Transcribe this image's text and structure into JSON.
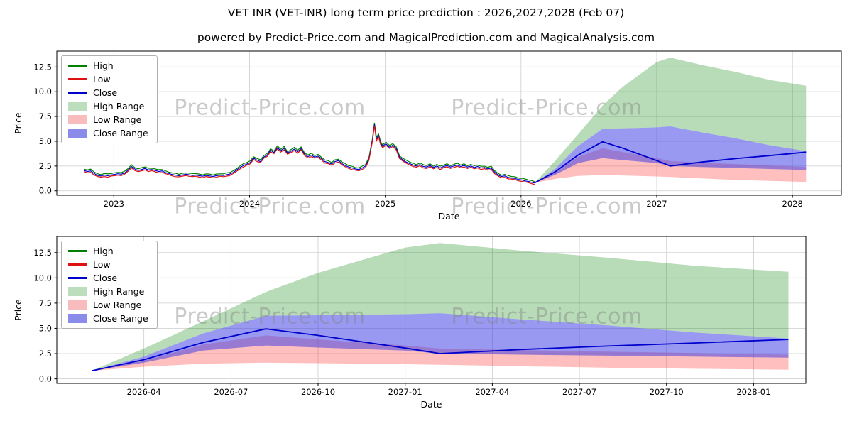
{
  "page": {
    "title": "VET INR (VET-INR) long term price prediction : 2026,2027,2028 (Feb 07)",
    "subtitle": "powered by Predict-Price.com and MagicalPrediction.com and MagicalAnalysis.com"
  },
  "watermark": {
    "text": "Predict-Price.com"
  },
  "legend": {
    "items": [
      {
        "label": "High",
        "type": "line",
        "color": "#008000"
      },
      {
        "label": "Low",
        "type": "line",
        "color": "#dd1111"
      },
      {
        "label": "Close",
        "type": "line",
        "color": "#0000cc"
      },
      {
        "label": "High Range",
        "type": "patch",
        "color": "#bcdebc"
      },
      {
        "label": "Low Range",
        "type": "patch",
        "color": "#f9bcbc"
      },
      {
        "label": "Close Range",
        "type": "patch",
        "color": "#8b8bea"
      }
    ]
  },
  "chart_data": {
    "type": "line",
    "title": "VET INR (VET-INR) long term price prediction : 2026,2027,2028 (Feb 07)",
    "subtitle": "powered by Predict-Price.com and MagicalPrediction.com and MagicalAnalysis.com",
    "colors": {
      "high": "#008000",
      "low": "#dd1111",
      "close": "#0000cc",
      "high_band": "rgba(0,128,0,0.28)",
      "low_band": "rgba(255,60,60,0.33)",
      "close_band": "rgba(60,60,230,0.52)",
      "grid": "#cccccc"
    },
    "charts": [
      {
        "name": "overview",
        "xlabel": "Date",
        "ylabel": "Price",
        "xlim": [
          2022.58,
          2028.36
        ],
        "ylim": [
          -0.45,
          14.1
        ],
        "xticks": [
          {
            "v": 2023,
            "label": "2023"
          },
          {
            "v": 2024,
            "label": "2024"
          },
          {
            "v": 2025,
            "label": "2025"
          },
          {
            "v": 2026,
            "label": "2026"
          },
          {
            "v": 2027,
            "label": "2027"
          },
          {
            "v": 2028,
            "label": "2028"
          }
        ],
        "yticks": [
          {
            "v": 0,
            "label": "0.0"
          },
          {
            "v": 2.5,
            "label": "2.5"
          },
          {
            "v": 5,
            "label": "5.0"
          },
          {
            "v": 7.5,
            "label": "7.5"
          },
          {
            "v": 10,
            "label": "10.0"
          },
          {
            "v": 12.5,
            "label": "12.5"
          }
        ]
      },
      {
        "name": "forecast",
        "xlabel": "Date",
        "ylabel": "Price",
        "xlim": [
          2026.0,
          2028.15
        ],
        "ylim": [
          -0.45,
          14.1
        ],
        "xticks": [
          {
            "v": 2026.25,
            "label": "2026-04"
          },
          {
            "v": 2026.5,
            "label": "2026-07"
          },
          {
            "v": 2026.75,
            "label": "2026-10"
          },
          {
            "v": 2027.0,
            "label": "2027-01"
          },
          {
            "v": 2027.25,
            "label": "2027-04"
          },
          {
            "v": 2027.5,
            "label": "2027-07"
          },
          {
            "v": 2027.75,
            "label": "2027-10"
          },
          {
            "v": 2028.0,
            "label": "2028-01"
          }
        ],
        "yticks": [
          {
            "v": 0,
            "label": "0.0"
          },
          {
            "v": 2.5,
            "label": "2.5"
          },
          {
            "v": 5,
            "label": "5.0"
          },
          {
            "v": 7.5,
            "label": "7.5"
          },
          {
            "v": 10,
            "label": "10.0"
          },
          {
            "v": 12.5,
            "label": "12.5"
          }
        ]
      }
    ],
    "historical": {
      "high_offset": 0.13,
      "low_offset": -0.11,
      "points": [
        [
          2022.78,
          2.05
        ],
        [
          2022.805,
          1.95
        ],
        [
          2022.83,
          2.0
        ],
        [
          2022.855,
          1.75
        ],
        [
          2022.88,
          1.55
        ],
        [
          2022.905,
          1.5
        ],
        [
          2022.93,
          1.58
        ],
        [
          2022.955,
          1.52
        ],
        [
          2022.98,
          1.6
        ],
        [
          2023.005,
          1.65
        ],
        [
          2023.03,
          1.72
        ],
        [
          2023.055,
          1.68
        ],
        [
          2023.08,
          1.8
        ],
        [
          2023.105,
          2.1
        ],
        [
          2023.13,
          2.45
        ],
        [
          2023.155,
          2.2
        ],
        [
          2023.18,
          2.05
        ],
        [
          2023.205,
          2.15
        ],
        [
          2023.23,
          2.25
        ],
        [
          2023.255,
          2.1
        ],
        [
          2023.28,
          2.15
        ],
        [
          2023.305,
          2.05
        ],
        [
          2023.33,
          1.95
        ],
        [
          2023.355,
          2.0
        ],
        [
          2023.38,
          1.85
        ],
        [
          2023.405,
          1.75
        ],
        [
          2023.43,
          1.65
        ],
        [
          2023.455,
          1.58
        ],
        [
          2023.48,
          1.52
        ],
        [
          2023.505,
          1.6
        ],
        [
          2023.53,
          1.68
        ],
        [
          2023.555,
          1.62
        ],
        [
          2023.58,
          1.55
        ],
        [
          2023.605,
          1.6
        ],
        [
          2023.63,
          1.52
        ],
        [
          2023.655,
          1.48
        ],
        [
          2023.68,
          1.55
        ],
        [
          2023.705,
          1.5
        ],
        [
          2023.73,
          1.45
        ],
        [
          2023.755,
          1.52
        ],
        [
          2023.78,
          1.58
        ],
        [
          2023.805,
          1.55
        ],
        [
          2023.83,
          1.62
        ],
        [
          2023.855,
          1.7
        ],
        [
          2023.88,
          1.85
        ],
        [
          2023.905,
          2.1
        ],
        [
          2023.93,
          2.35
        ],
        [
          2023.955,
          2.55
        ],
        [
          2023.98,
          2.7
        ],
        [
          2024.005,
          2.85
        ],
        [
          2024.03,
          3.3
        ],
        [
          2024.055,
          3.1
        ],
        [
          2024.08,
          2.95
        ],
        [
          2024.105,
          3.4
        ],
        [
          2024.13,
          3.6
        ],
        [
          2024.155,
          4.1
        ],
        [
          2024.18,
          3.85
        ],
        [
          2024.205,
          4.35
        ],
        [
          2024.23,
          4.05
        ],
        [
          2024.255,
          4.3
        ],
        [
          2024.28,
          3.8
        ],
        [
          2024.305,
          4.0
        ],
        [
          2024.33,
          4.2
        ],
        [
          2024.355,
          3.95
        ],
        [
          2024.38,
          4.25
        ],
        [
          2024.405,
          3.7
        ],
        [
          2024.43,
          3.45
        ],
        [
          2024.455,
          3.6
        ],
        [
          2024.48,
          3.4
        ],
        [
          2024.505,
          3.5
        ],
        [
          2024.53,
          3.25
        ],
        [
          2024.555,
          2.95
        ],
        [
          2024.58,
          2.85
        ],
        [
          2024.605,
          2.7
        ],
        [
          2024.63,
          2.95
        ],
        [
          2024.655,
          3.05
        ],
        [
          2024.68,
          2.75
        ],
        [
          2024.705,
          2.55
        ],
        [
          2024.73,
          2.4
        ],
        [
          2024.755,
          2.3
        ],
        [
          2024.78,
          2.2
        ],
        [
          2024.805,
          2.15
        ],
        [
          2024.83,
          2.3
        ],
        [
          2024.855,
          2.5
        ],
        [
          2024.88,
          3.2
        ],
        [
          2024.905,
          5.1
        ],
        [
          2024.92,
          6.7
        ],
        [
          2024.935,
          5.2
        ],
        [
          2024.95,
          5.6
        ],
        [
          2024.965,
          4.8
        ],
        [
          2024.98,
          4.5
        ],
        [
          2025.005,
          4.75
        ],
        [
          2025.03,
          4.4
        ],
        [
          2025.055,
          4.6
        ],
        [
          2025.08,
          4.3
        ],
        [
          2025.105,
          3.4
        ],
        [
          2025.13,
          3.1
        ],
        [
          2025.155,
          2.9
        ],
        [
          2025.18,
          2.75
        ],
        [
          2025.205,
          2.6
        ],
        [
          2025.23,
          2.5
        ],
        [
          2025.255,
          2.65
        ],
        [
          2025.28,
          2.45
        ],
        [
          2025.305,
          2.4
        ],
        [
          2025.33,
          2.55
        ],
        [
          2025.355,
          2.35
        ],
        [
          2025.38,
          2.5
        ],
        [
          2025.405,
          2.3
        ],
        [
          2025.43,
          2.45
        ],
        [
          2025.455,
          2.55
        ],
        [
          2025.48,
          2.4
        ],
        [
          2025.505,
          2.5
        ],
        [
          2025.53,
          2.6
        ],
        [
          2025.555,
          2.45
        ],
        [
          2025.58,
          2.55
        ],
        [
          2025.605,
          2.4
        ],
        [
          2025.63,
          2.5
        ],
        [
          2025.655,
          2.35
        ],
        [
          2025.68,
          2.45
        ],
        [
          2025.705,
          2.3
        ],
        [
          2025.73,
          2.35
        ],
        [
          2025.755,
          2.2
        ],
        [
          2025.78,
          2.3
        ],
        [
          2025.805,
          1.9
        ],
        [
          2025.83,
          1.6
        ],
        [
          2025.855,
          1.45
        ],
        [
          2025.88,
          1.5
        ],
        [
          2025.905,
          1.35
        ],
        [
          2025.93,
          1.3
        ],
        [
          2025.955,
          1.25
        ],
        [
          2025.98,
          1.15
        ],
        [
          2026.005,
          1.1
        ],
        [
          2026.03,
          1.0
        ],
        [
          2026.055,
          0.95
        ],
        [
          2026.08,
          0.85
        ],
        [
          2026.1,
          0.8
        ]
      ]
    },
    "prediction": {
      "t": [
        2026.1,
        2026.25,
        2026.42,
        2026.6,
        2026.75,
        2027.0,
        2027.1,
        2027.33,
        2027.58,
        2027.83,
        2028.1
      ],
      "close": [
        0.8,
        1.9,
        3.6,
        4.95,
        4.3,
        3.05,
        2.5,
        2.9,
        3.25,
        3.55,
        3.9
      ],
      "close_upper": [
        0.8,
        2.2,
        4.5,
        6.25,
        6.3,
        6.4,
        6.5,
        5.9,
        5.3,
        4.6,
        4.0
      ],
      "close_lower": [
        0.8,
        1.6,
        2.8,
        3.3,
        3.1,
        2.8,
        2.5,
        2.4,
        2.3,
        2.2,
        2.1
      ],
      "high_upper": [
        0.8,
        3.0,
        5.7,
        8.6,
        10.5,
        13.0,
        13.45,
        12.7,
        12.0,
        11.2,
        10.6
      ],
      "low_upper": [
        0.8,
        1.8,
        3.4,
        4.3,
        3.9,
        3.3,
        3.0,
        2.85,
        2.7,
        2.55,
        2.4
      ],
      "low_lower": [
        0.8,
        1.2,
        1.5,
        1.6,
        1.55,
        1.45,
        1.4,
        1.25,
        1.1,
        1.0,
        0.9
      ]
    }
  }
}
